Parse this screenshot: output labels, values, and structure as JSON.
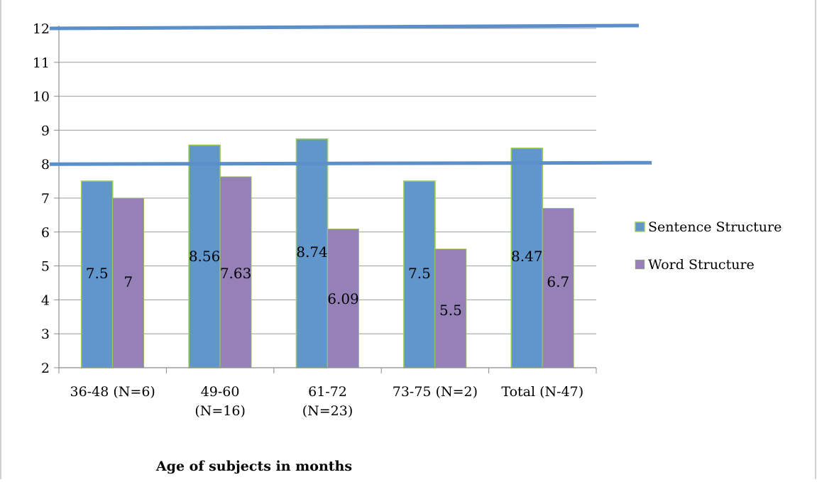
{
  "chart_data": {
    "type": "bar",
    "xlabel": "Age of subjects in months",
    "ylabel": "",
    "ylim": [
      2,
      12
    ],
    "yticks": [
      "2",
      "3",
      "4",
      "5",
      "6",
      "7",
      "8",
      "9",
      "10",
      "11",
      "12"
    ],
    "grid": true,
    "legend_position": "right",
    "categories": [
      [
        "36-48 (N=6)"
      ],
      [
        "49-60",
        "(N=16)"
      ],
      [
        "61-72",
        "(N=23)"
      ],
      [
        "73-75 (N=2)"
      ],
      [
        "Total (N-47)"
      ]
    ],
    "series": [
      {
        "name": "Sentence Structure",
        "color": "#6096cc",
        "values": [
          7.5,
          8.56,
          8.74,
          7.5,
          8.47
        ],
        "labels": [
          "7.5",
          "8.56",
          "8.74",
          "7.5",
          "8.47"
        ]
      },
      {
        "name": "Word Structure",
        "color": "#9580b7",
        "values": [
          7,
          7.63,
          6.09,
          5.5,
          6.7
        ],
        "labels": [
          "7",
          "7.63",
          "6.09",
          "5.5",
          "6.7"
        ]
      }
    ],
    "reference_lines": [
      {
        "y": 12,
        "color": "#5b8fc9"
      },
      {
        "y": 8,
        "color": "#5b8fc9"
      }
    ],
    "bar_outline_color": "#9ccb56"
  }
}
